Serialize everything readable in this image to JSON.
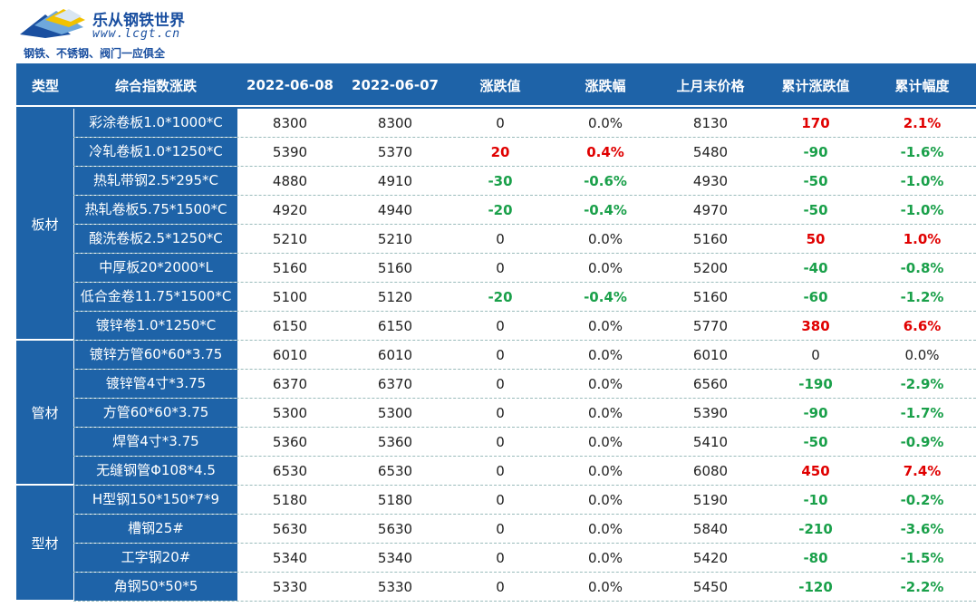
{
  "logo": {
    "title": "乐从钢铁世界",
    "url": "www.lcgt.cn",
    "slogan": "钢铁、不锈钢、阀门一应俱全"
  },
  "header": [
    "类型",
    "综合指数涨跌",
    "2022-06-08",
    "2022-06-07",
    "涨跌值",
    "涨跌幅",
    "上月末价格",
    "累计涨跌值",
    "累计幅度"
  ],
  "groups": [
    {
      "category": "板材",
      "rows": [
        {
          "name": "彩涂卷板1.0*1000*C",
          "d1": "8300",
          "d2": "8300",
          "chg": "0",
          "chg_color": "none",
          "pct": "0.0%",
          "pct_color": "none",
          "last": "8130",
          "cum": "170",
          "cum_color": "red",
          "cump": "2.1%",
          "cump_color": "red"
        },
        {
          "name": "冷轧卷板1.0*1250*C",
          "d1": "5390",
          "d2": "5370",
          "chg": "20",
          "chg_color": "red",
          "pct": "0.4%",
          "pct_color": "red",
          "last": "5480",
          "cum": "-90",
          "cum_color": "green",
          "cump": "-1.6%",
          "cump_color": "green"
        },
        {
          "name": "热轧带钢2.5*295*C",
          "d1": "4880",
          "d2": "4910",
          "chg": "-30",
          "chg_color": "green",
          "pct": "-0.6%",
          "pct_color": "green",
          "last": "4930",
          "cum": "-50",
          "cum_color": "green",
          "cump": "-1.0%",
          "cump_color": "green"
        },
        {
          "name": "热轧卷板5.75*1500*C",
          "d1": "4920",
          "d2": "4940",
          "chg": "-20",
          "chg_color": "green",
          "pct": "-0.4%",
          "pct_color": "green",
          "last": "4970",
          "cum": "-50",
          "cum_color": "green",
          "cump": "-1.0%",
          "cump_color": "green"
        },
        {
          "name": "酸洗卷板2.5*1250*C",
          "d1": "5210",
          "d2": "5210",
          "chg": "0",
          "chg_color": "none",
          "pct": "0.0%",
          "pct_color": "none",
          "last": "5160",
          "cum": "50",
          "cum_color": "red",
          "cump": "1.0%",
          "cump_color": "red"
        },
        {
          "name": "中厚板20*2000*L",
          "d1": "5160",
          "d2": "5160",
          "chg": "0",
          "chg_color": "none",
          "pct": "0.0%",
          "pct_color": "none",
          "last": "5200",
          "cum": "-40",
          "cum_color": "green",
          "cump": "-0.8%",
          "cump_color": "green"
        },
        {
          "name": "低合金卷11.75*1500*C",
          "d1": "5100",
          "d2": "5120",
          "chg": "-20",
          "chg_color": "green",
          "pct": "-0.4%",
          "pct_color": "green",
          "last": "5160",
          "cum": "-60",
          "cum_color": "green",
          "cump": "-1.2%",
          "cump_color": "green"
        },
        {
          "name": "镀锌卷1.0*1250*C",
          "d1": "6150",
          "d2": "6150",
          "chg": "0",
          "chg_color": "none",
          "pct": "0.0%",
          "pct_color": "none",
          "last": "5770",
          "cum": "380",
          "cum_color": "red",
          "cump": "6.6%",
          "cump_color": "red"
        }
      ]
    },
    {
      "category": "管材",
      "rows": [
        {
          "name": "镀锌方管60*60*3.75",
          "d1": "6010",
          "d2": "6010",
          "chg": "0",
          "chg_color": "none",
          "pct": "0.0%",
          "pct_color": "none",
          "last": "6010",
          "cum": "0",
          "cum_color": "none",
          "cump": "0.0%",
          "cump_color": "none"
        },
        {
          "name": "镀锌管4寸*3.75",
          "d1": "6370",
          "d2": "6370",
          "chg": "0",
          "chg_color": "none",
          "pct": "0.0%",
          "pct_color": "none",
          "last": "6560",
          "cum": "-190",
          "cum_color": "green",
          "cump": "-2.9%",
          "cump_color": "green"
        },
        {
          "name": "方管60*60*3.75",
          "d1": "5300",
          "d2": "5300",
          "chg": "0",
          "chg_color": "none",
          "pct": "0.0%",
          "pct_color": "none",
          "last": "5390",
          "cum": "-90",
          "cum_color": "green",
          "cump": "-1.7%",
          "cump_color": "green"
        },
        {
          "name": "焊管4寸*3.75",
          "d1": "5360",
          "d2": "5360",
          "chg": "0",
          "chg_color": "none",
          "pct": "0.0%",
          "pct_color": "none",
          "last": "5410",
          "cum": "-50",
          "cum_color": "green",
          "cump": "-0.9%",
          "cump_color": "green"
        },
        {
          "name": "无缝钢管Φ108*4.5",
          "d1": "6530",
          "d2": "6530",
          "chg": "0",
          "chg_color": "none",
          "pct": "0.0%",
          "pct_color": "none",
          "last": "6080",
          "cum": "450",
          "cum_color": "red",
          "cump": "7.4%",
          "cump_color": "red"
        }
      ]
    },
    {
      "category": "型材",
      "rows": [
        {
          "name": "H型钢150*150*7*9",
          "d1": "5180",
          "d2": "5180",
          "chg": "0",
          "chg_color": "none",
          "pct": "0.0%",
          "pct_color": "none",
          "last": "5190",
          "cum": "-10",
          "cum_color": "green",
          "cump": "-0.2%",
          "cump_color": "green"
        },
        {
          "name": "槽钢25#",
          "d1": "5630",
          "d2": "5630",
          "chg": "0",
          "chg_color": "none",
          "pct": "0.0%",
          "pct_color": "none",
          "last": "5840",
          "cum": "-210",
          "cum_color": "green",
          "cump": "-3.6%",
          "cump_color": "green"
        },
        {
          "name": "工字钢20#",
          "d1": "5340",
          "d2": "5340",
          "chg": "0",
          "chg_color": "none",
          "pct": "0.0%",
          "pct_color": "none",
          "last": "5420",
          "cum": "-80",
          "cum_color": "green",
          "cump": "-1.5%",
          "cump_color": "green"
        },
        {
          "name": "角钢50*50*5",
          "d1": "5330",
          "d2": "5330",
          "chg": "0",
          "chg_color": "none",
          "pct": "0.0%",
          "pct_color": "none",
          "last": "5450",
          "cum": "-120",
          "cum_color": "green",
          "cump": "-2.2%",
          "cump_color": "green"
        }
      ]
    }
  ],
  "colors": {
    "header_bg": "#1e63a8",
    "up": "#e00000",
    "down": "#1aa04a"
  }
}
